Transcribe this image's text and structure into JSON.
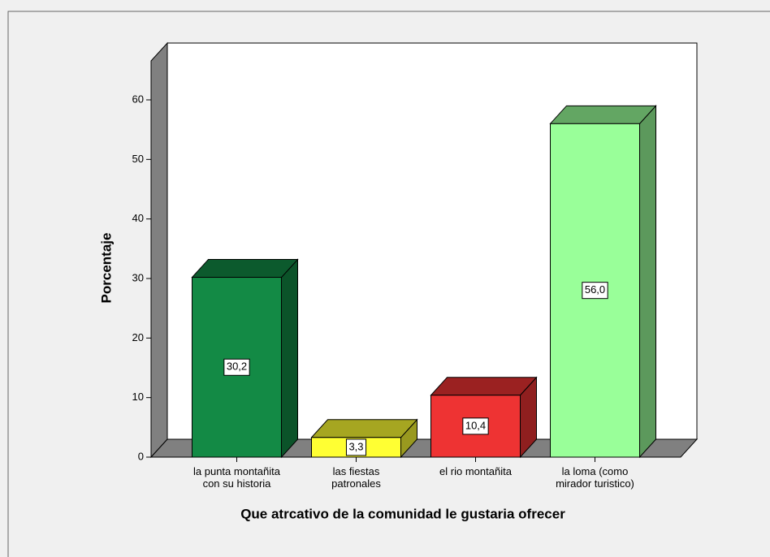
{
  "chart_data": {
    "type": "bar3d",
    "ylabel": "Porcentaje",
    "xlabel": "Que atrcativo de la comunidad le gustaria ofrecer",
    "categories": [
      "la punta montañita con su historia",
      "las fiestas patronales",
      "el rio montañita",
      "la loma (como mirador turistico)"
    ],
    "values": [
      30.2,
      3.3,
      10.4,
      56.0
    ],
    "value_labels": [
      "30,2",
      "3,3",
      "10,4",
      "56,0"
    ],
    "colors": [
      "#138a45",
      "#ffff33",
      "#ee3333",
      "#99ff99"
    ],
    "ylim": [
      0,
      60
    ],
    "yticks": [
      0,
      10,
      20,
      30,
      40,
      50,
      60
    ]
  }
}
